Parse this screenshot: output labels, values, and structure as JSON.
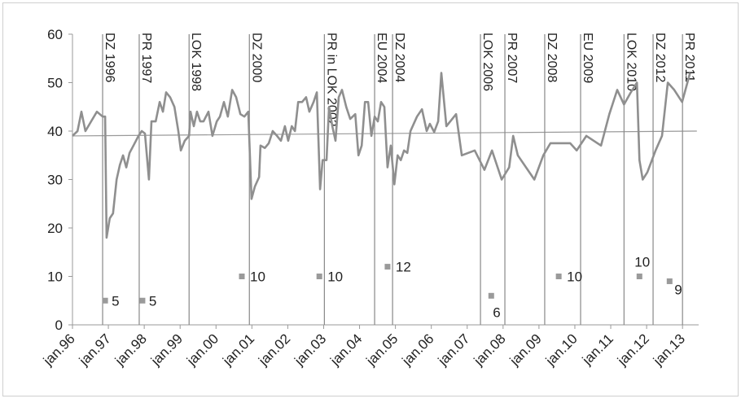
{
  "chart_data": {
    "type": "line",
    "xlim": [
      1996,
      2013.45
    ],
    "xticks": [
      {
        "value": 1996,
        "label": "jan.96"
      },
      {
        "value": 1997,
        "label": "jan.97"
      },
      {
        "value": 1998,
        "label": "jan.98"
      },
      {
        "value": 1999,
        "label": "jan.99"
      },
      {
        "value": 2000,
        "label": "jan.00"
      },
      {
        "value": 2001,
        "label": "jan.01"
      },
      {
        "value": 2002,
        "label": "jan.02"
      },
      {
        "value": 2003,
        "label": "jan.03"
      },
      {
        "value": 2004,
        "label": "jan.04"
      },
      {
        "value": 2005,
        "label": "jan.05"
      },
      {
        "value": 2006,
        "label": "jan.06"
      },
      {
        "value": 2007,
        "label": "jan.07"
      },
      {
        "value": 2008,
        "label": "jan.08"
      },
      {
        "value": 2009,
        "label": "jan.09"
      },
      {
        "value": 2010,
        "label": "jan.10"
      },
      {
        "value": 2011,
        "label": "jan.11"
      },
      {
        "value": 2012,
        "label": "jan.12"
      },
      {
        "value": 2013,
        "label": "jan.13"
      }
    ],
    "ylim": [
      0,
      60
    ],
    "yticks": [
      0,
      10,
      20,
      30,
      40,
      50,
      60
    ],
    "grid": false,
    "line": {
      "color": "#8f8f8f",
      "x": [
        1996.0,
        1996.14,
        1996.25,
        1996.36,
        1996.52,
        1996.68,
        1996.84,
        1996.91,
        1996.95,
        1997.04,
        1997.13,
        1997.23,
        1997.32,
        1997.41,
        1997.5,
        1997.59,
        1997.7,
        1997.84,
        1997.93,
        1998.02,
        1998.13,
        1998.2,
        1998.32,
        1998.43,
        1998.52,
        1998.61,
        1998.72,
        1998.84,
        1998.95,
        1999.02,
        1999.13,
        1999.25,
        1999.29,
        1999.38,
        1999.47,
        1999.56,
        1999.65,
        1999.79,
        1999.9,
        2000.02,
        2000.11,
        2000.22,
        2000.33,
        2000.45,
        2000.56,
        2000.68,
        2000.79,
        2000.9,
        2000.99,
        2001.08,
        2001.2,
        2001.24,
        2001.36,
        2001.47,
        2001.58,
        2001.7,
        2001.81,
        2001.92,
        2002.01,
        2002.11,
        2002.2,
        2002.29,
        2002.4,
        2002.51,
        2002.6,
        2002.72,
        2002.81,
        2002.9,
        2002.97,
        2003.08,
        2003.15,
        2003.24,
        2003.33,
        2003.42,
        2003.51,
        2003.63,
        2003.74,
        2003.88,
        2003.97,
        2004.06,
        2004.15,
        2004.24,
        2004.33,
        2004.42,
        2004.51,
        2004.6,
        2004.69,
        2004.78,
        2004.87,
        2004.97,
        2005.06,
        2005.15,
        2005.24,
        2005.33,
        2005.42,
        2005.6,
        2005.74,
        2005.87,
        2005.96,
        2006.08,
        2006.19,
        2006.28,
        2006.42,
        2006.53,
        2006.69,
        2006.85,
        2007.21,
        2007.48,
        2007.69,
        2007.96,
        2008.17,
        2008.28,
        2008.41,
        2008.87,
        2009.12,
        2009.32,
        2009.87,
        2010.05,
        2010.32,
        2010.73,
        2010.96,
        2011.18,
        2011.37,
        2011.56,
        2011.73,
        2011.8,
        2011.89,
        2012.02,
        2012.25,
        2012.43,
        2012.59,
        2012.77,
        2012.99,
        2013.21
      ],
      "values": [
        39,
        40,
        44,
        40,
        42,
        44,
        43,
        43,
        18,
        22,
        23,
        30,
        33,
        35,
        32.5,
        35.5,
        37,
        39,
        40,
        39.5,
        30,
        42,
        42,
        46,
        44,
        48,
        47,
        45,
        40,
        36,
        38,
        39,
        44,
        41,
        44,
        42,
        42,
        44,
        39,
        42,
        43,
        46,
        43,
        48.5,
        47,
        43.5,
        43,
        44,
        26,
        28.5,
        30.5,
        37,
        36.5,
        37.5,
        40,
        39,
        38,
        41,
        38,
        41,
        40,
        46,
        46,
        47,
        44,
        46,
        48,
        28,
        34,
        34,
        45,
        41,
        38,
        47,
        48.5,
        45,
        42.5,
        43.5,
        35,
        37,
        46,
        46,
        39,
        43,
        42,
        46,
        45,
        32.5,
        37,
        29,
        35,
        34,
        36,
        35.5,
        40,
        43,
        44.5,
        40,
        41.5,
        39.8,
        42,
        52,
        41,
        42,
        43.5,
        35,
        36,
        32,
        36,
        30,
        32.5,
        39,
        35,
        30,
        35,
        37.5,
        37.5,
        36,
        39,
        37,
        43.5,
        48.5,
        45.5,
        48,
        50,
        34,
        30,
        31.5,
        36,
        39,
        50,
        48.5,
        46,
        52
      ]
    },
    "trend": {
      "color": "#9a9a9a",
      "x": [
        1996,
        2013.4
      ],
      "values": [
        39,
        40
      ]
    },
    "events": [
      {
        "label": "DZ 1996",
        "x": 1996.84
      },
      {
        "label": "PR 1997",
        "x": 1997.86
      },
      {
        "label": "LOK 1998",
        "x": 1999.25
      },
      {
        "label": "DZ 2000",
        "x": 2000.93
      },
      {
        "label": "PR  in LOK 2002",
        "x": 2003.02
      },
      {
        "label": "EU 2004",
        "x": 2004.42
      },
      {
        "label": "DZ 2004",
        "x": 2004.92
      },
      {
        "label": "LOK 2006",
        "x": 2007.37
      },
      {
        "label": "PR 2007",
        "x": 2008.05
      },
      {
        "label": "DZ 2008",
        "x": 2009.16
      },
      {
        "label": "EU 2009",
        "x": 2010.16
      },
      {
        "label": "LOK 2010",
        "x": 2011.37
      },
      {
        "label": "DZ 2012",
        "x": 2012.18
      },
      {
        "label": "PR 2011",
        "x": 2013.0
      }
    ],
    "points": {
      "color": "#9a9a9a",
      "x": [
        1996.91,
        1997.95,
        2000.72,
        2002.88,
        2004.78,
        2007.67,
        2009.55,
        2011.8,
        2012.64
      ],
      "values": [
        5,
        5,
        10,
        10,
        12,
        6,
        10,
        10,
        9
      ]
    }
  }
}
